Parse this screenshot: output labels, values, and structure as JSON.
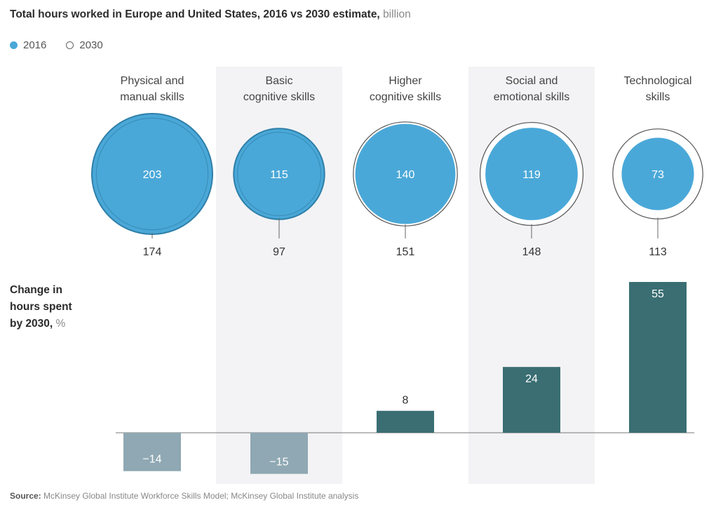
{
  "title": "Total hours worked in Europe and United States, 2016 vs 2030 estimate,",
  "title_unit": "billion",
  "legend": [
    {
      "label": "2016",
      "style": "filled"
    },
    {
      "label": "2030",
      "style": "hollow"
    }
  ],
  "change_label": "Change in\nhours spent\nby 2030,",
  "change_unit": "%",
  "source_label": "Source:",
  "source_text": "McKinsey Global Institute Workforce Skills Model; McKinsey Global Institute analysis",
  "colors": {
    "bubble_2016": "#4aa8d8",
    "bubble_2016_stroke": "#2f7fa8",
    "ring_2030": "#555555",
    "bar_positive": "#3a6e73",
    "bar_negative": "#8fa8b3",
    "shade": "#f3f3f5"
  },
  "chart_data": {
    "type": "bubble+bar",
    "categories": [
      "Physical and\nmanual skills",
      "Basic\ncognitive skills",
      "Higher\ncognitive skills",
      "Social and\nemotional skills",
      "Technological\nskills"
    ],
    "hours_2016": [
      203,
      115,
      140,
      119,
      73
    ],
    "hours_2030": [
      174,
      97,
      151,
      148,
      113
    ],
    "change_pct": [
      -14,
      -15,
      8,
      24,
      55
    ]
  }
}
